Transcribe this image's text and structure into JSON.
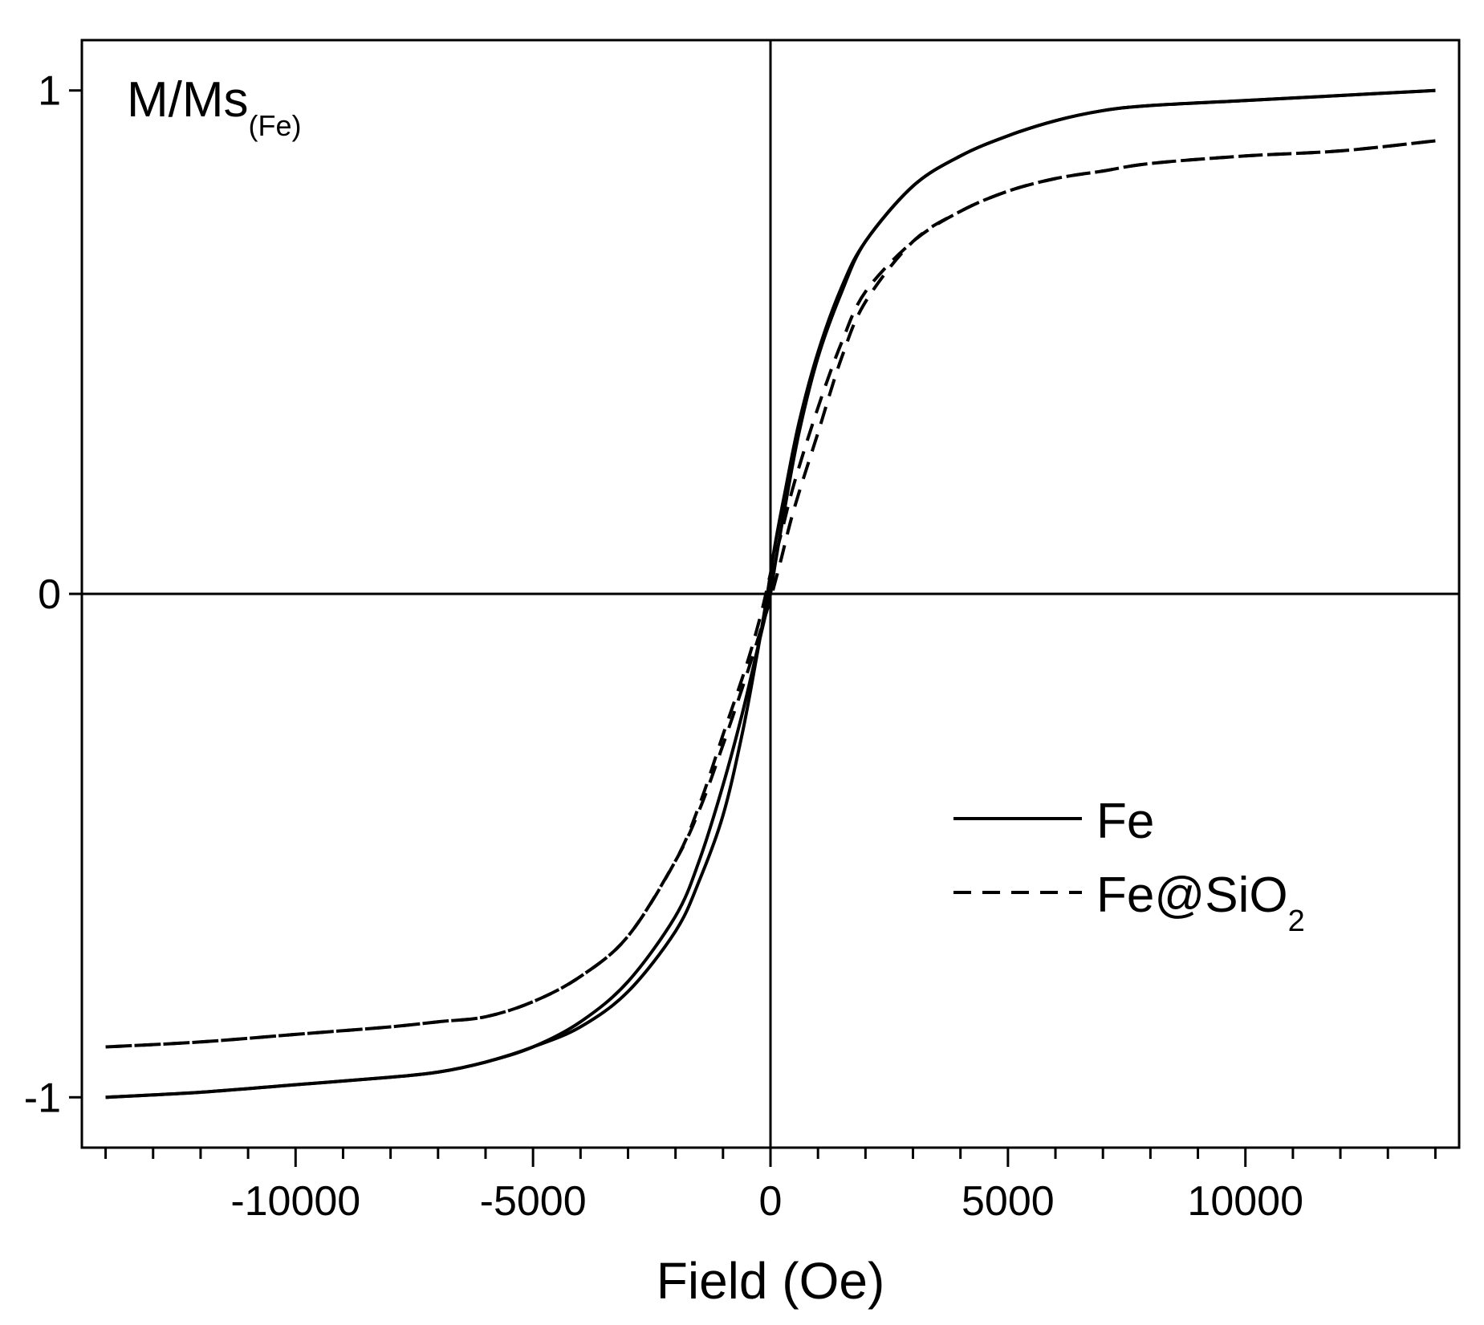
{
  "chart_data": {
    "type": "line",
    "title": "",
    "xlabel": "Field (Oe)",
    "ylabel": {
      "main": "M/Ms",
      "subscript": "(Fe)"
    },
    "xlim": [
      -14500,
      14500
    ],
    "ylim": [
      -1.1,
      1.1
    ],
    "x_ticks": [
      -10000,
      -5000,
      0,
      5000,
      10000
    ],
    "x_tick_labels": [
      "-10000",
      "-5000",
      "0",
      "5000",
      "10000"
    ],
    "x_minor_step": 1000,
    "y_ticks": [
      -1,
      0,
      1
    ],
    "y_tick_labels": [
      "-1",
      "0",
      "1"
    ],
    "grid": false,
    "zero_lines": true,
    "legend_position": "bottom-right",
    "series": [
      {
        "name": "Fe",
        "legend_label": "Fe",
        "style": "solid",
        "color": "#000000",
        "branches": [
          {
            "field": [
              -14000,
              -12000,
              -10000,
              -8000,
              -7000,
              -6000,
              -5000,
              -4000,
              -3000,
              -2000,
              -1500,
              -1000,
              -600,
              -300,
              -100,
              0,
              100,
              300,
              600,
              1000,
              1500,
              2000,
              3000,
              4000,
              5000,
              6000,
              7000,
              8000,
              10000,
              12000,
              14000
            ],
            "m": [
              -1.0,
              -0.99,
              -0.975,
              -0.96,
              -0.95,
              -0.93,
              -0.9,
              -0.85,
              -0.77,
              -0.64,
              -0.53,
              -0.38,
              -0.24,
              -0.12,
              -0.04,
              0.0,
              0.06,
              0.17,
              0.32,
              0.47,
              0.6,
              0.7,
              0.81,
              0.87,
              0.91,
              0.94,
              0.96,
              0.97,
              0.98,
              0.99,
              1.0
            ]
          },
          {
            "field": [
              14000,
              12000,
              10000,
              8000,
              7000,
              6000,
              5000,
              4000,
              3000,
              2000,
              1500,
              1000,
              600,
              300,
              100,
              0,
              -100,
              -300,
              -600,
              -1000,
              -1500,
              -2000,
              -3000,
              -4000,
              -5000,
              -6000,
              -7000,
              -8000,
              -10000,
              -12000,
              -14000
            ],
            "m": [
              1.0,
              0.99,
              0.98,
              0.97,
              0.96,
              0.94,
              0.91,
              0.87,
              0.81,
              0.7,
              0.61,
              0.48,
              0.34,
              0.2,
              0.1,
              0.04,
              -0.02,
              -0.13,
              -0.28,
              -0.44,
              -0.57,
              -0.67,
              -0.79,
              -0.86,
              -0.9,
              -0.93,
              -0.95,
              -0.96,
              -0.975,
              -0.99,
              -1.0
            ]
          }
        ]
      },
      {
        "name": "Fe@SiO2",
        "legend_label": "Fe@SiO",
        "legend_subscript": "2",
        "style": "dashed",
        "color": "#000000",
        "branches": [
          {
            "field": [
              -14000,
              -12000,
              -10000,
              -8000,
              -7000,
              -6000,
              -5000,
              -4000,
              -3000,
              -2000,
              -1500,
              -1000,
              -500,
              -200,
              0,
              200,
              500,
              1000,
              1500,
              2000,
              3000,
              4000,
              5000,
              6000,
              7000,
              8000,
              10000,
              12000,
              14000
            ],
            "m": [
              -0.9,
              -0.89,
              -0.875,
              -0.86,
              -0.85,
              -0.84,
              -0.81,
              -0.76,
              -0.68,
              -0.53,
              -0.43,
              -0.3,
              -0.16,
              -0.07,
              -0.01,
              0.06,
              0.17,
              0.32,
              0.47,
              0.58,
              0.7,
              0.76,
              0.8,
              0.825,
              0.84,
              0.855,
              0.87,
              0.88,
              0.9
            ]
          },
          {
            "field": [
              14000,
              12000,
              10000,
              8000,
              7000,
              6000,
              5000,
              4000,
              3000,
              2000,
              1500,
              1000,
              500,
              200,
              0,
              -200,
              -500,
              -1000,
              -1500,
              -2000,
              -3000,
              -4000,
              -5000,
              -6000,
              -7000,
              -8000,
              -10000,
              -12000,
              -14000
            ],
            "m": [
              0.9,
              0.88,
              0.87,
              0.855,
              0.84,
              0.825,
              0.8,
              0.76,
              0.7,
              0.6,
              0.5,
              0.37,
              0.22,
              0.11,
              0.04,
              -0.04,
              -0.14,
              -0.28,
              -0.42,
              -0.53,
              -0.68,
              -0.76,
              -0.81,
              -0.84,
              -0.85,
              -0.86,
              -0.875,
              -0.89,
              -0.9
            ]
          }
        ]
      }
    ]
  }
}
